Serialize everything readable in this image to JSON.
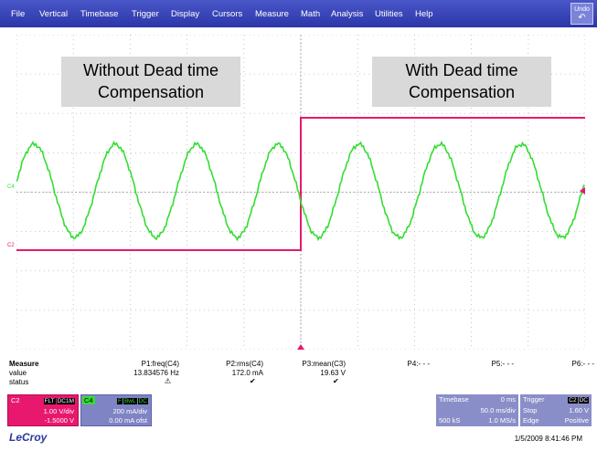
{
  "menu": {
    "items": [
      "File",
      "Vertical",
      "Timebase",
      "Trigger",
      "Display",
      "Cursors",
      "Measure",
      "Math",
      "Analysis",
      "Utilities",
      "Help"
    ],
    "undo_label": "Undo",
    "undo_icon": "undo-arrow-icon"
  },
  "channels": {
    "c4_marker": "C4",
    "c2_marker": "C2",
    "c4_color": "#33dd33",
    "c2_color": "#e8186e"
  },
  "annotations": {
    "left": "Without Dead time\nCompensation",
    "right": "With Dead time\nCompensation"
  },
  "measure": {
    "heading": "Measure",
    "row_value_label": "value",
    "row_status_label": "status",
    "params": [
      {
        "name": "P1:freq(C4)",
        "value": "13.834576 Hz",
        "status": "warning-icon",
        "status_glyph": "⚠"
      },
      {
        "name": "P2:rms(C4)",
        "value": "172.0 mA",
        "status": "check-icon",
        "status_glyph": "✔"
      },
      {
        "name": "P3:mean(C3)",
        "value": "19.63 V",
        "status": "check-icon",
        "status_glyph": "✔"
      },
      {
        "name": "P4:- - -",
        "value": "",
        "status": "",
        "status_glyph": ""
      },
      {
        "name": "P5:- - -",
        "value": "",
        "status": "",
        "status_glyph": ""
      },
      {
        "name": "P6:- - -",
        "value": "",
        "status": "",
        "status_glyph": ""
      }
    ]
  },
  "c2_badge": {
    "label": "C2",
    "tags": [
      "FLT",
      "DC1M"
    ],
    "line1": "1.00 V/div",
    "line2": "-1.5000 V"
  },
  "c4_badge": {
    "label": "C4",
    "tags": [
      "F",
      "BwL",
      "DC"
    ],
    "line1": "200 mA/div",
    "line2": "0.00 mA ofst"
  },
  "timebase": {
    "label": "Timebase",
    "delay": "0 ms",
    "rate": "50.0 ms/div",
    "samples": "500 kS",
    "sample_rate": "1.0 MS/s"
  },
  "trigger": {
    "label": "Trigger",
    "tags": [
      "C2",
      "DC"
    ],
    "mode": "Stop",
    "level": "1.60 V",
    "type": "Edge",
    "slope": "Positive"
  },
  "brand": "LeCroy",
  "datetime": "1/5/2009 8:41:46 PM"
}
